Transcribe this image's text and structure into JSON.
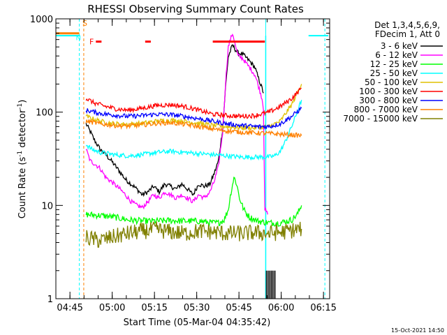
{
  "chart_data": {
    "type": "line",
    "title": "RHESSI Observing Summary Count Rates",
    "xlabel": "Start Time (05-Mar-04 04:35:42)",
    "ylabel_main": "Count Rate (s",
    "ylabel_sup": "-1",
    "ylabel_rest": " detector",
    "ylabel_close": ")",
    "yscale": "log",
    "ylim": [
      1,
      1000
    ],
    "xlim_minutes": [
      4.3,
      101.5
    ],
    "x_ticks": [
      {
        "label": "04:45",
        "min": 9.3
      },
      {
        "label": "05:00",
        "min": 24.3
      },
      {
        "label": "05:15",
        "min": 39.3
      },
      {
        "label": "05:30",
        "min": 54.3
      },
      {
        "label": "05:45",
        "min": 69.3
      },
      {
        "label": "06:00",
        "min": 84.3
      },
      {
        "label": "06:15",
        "min": 99.3
      }
    ],
    "y_ticks": [
      {
        "label": "1",
        "value": 1
      },
      {
        "label": "10",
        "value": 10
      },
      {
        "label": "100",
        "value": 100
      },
      {
        "label": "1000",
        "value": 1000
      }
    ],
    "legend_header": [
      "Det 1,3,4,5,6,9,",
      "FDecim 1, Att 0"
    ],
    "series": [
      {
        "name": "3 - 6 keV",
        "color": "#000000",
        "x": [
          15.0,
          16.5,
          18.0,
          20.0,
          22.0,
          24.0,
          27.0,
          29.0,
          31.0,
          33.0,
          35.0,
          37.0,
          39.0,
          41.0,
          43.0,
          45.0,
          47.0,
          49.0,
          51.0,
          53.0,
          55.0,
          57.0,
          59.0,
          60.5,
          62.0,
          63.5,
          64.5,
          65.5,
          67.0,
          68.0,
          69.0,
          70.5,
          72.0,
          73.5,
          75.0,
          76.0,
          77.5,
          78.0
        ],
        "y": [
          75,
          62,
          50,
          40,
          35,
          30,
          23,
          19,
          17,
          15,
          13,
          14,
          16,
          14,
          17,
          16,
          15,
          17,
          15,
          13,
          17,
          16,
          17,
          22,
          30,
          65,
          180,
          390,
          520,
          470,
          430,
          420,
          380,
          340,
          300,
          240,
          180,
          160
        ]
      },
      {
        "name": "6 - 12 keV",
        "color": "#ff00ff",
        "x": [
          15.0,
          16.5,
          18.0,
          20.0,
          22.0,
          24.0,
          27.0,
          29.0,
          31.0,
          33.0,
          35.0,
          37.0,
          39.0,
          41.0,
          43.0,
          45.0,
          47.0,
          49.0,
          51.0,
          53.0,
          55.0,
          57.0,
          59.0,
          60.5,
          62.0,
          63.5,
          64.5,
          65.5,
          67.0,
          67.5,
          68.0,
          69.0,
          70.5,
          72.0,
          73.5,
          75.0,
          76.0,
          77.5,
          78.0,
          78.5,
          79.5
        ],
        "y": [
          40,
          30,
          28,
          25,
          20,
          18,
          15,
          13,
          11,
          10,
          9.5,
          11,
          13,
          12,
          14,
          13,
          12,
          13,
          12,
          11,
          13,
          12,
          14,
          18,
          26,
          60,
          200,
          500,
          700,
          620,
          520,
          400,
          380,
          330,
          290,
          250,
          200,
          140,
          110,
          9,
          8
        ]
      },
      {
        "name": "12 - 25 keV",
        "color": "#00ff00",
        "x": [
          15.0,
          20.0,
          25.0,
          30.0,
          35.0,
          40.0,
          45.0,
          50.0,
          55.0,
          60.0,
          62.0,
          64.0,
          65.5,
          66.5,
          67.5,
          68.5,
          69.5,
          71.0,
          73.0,
          76.0,
          80.0,
          84.0,
          88.0,
          90.0,
          91.5
        ],
        "y": [
          8,
          7.8,
          7.5,
          7.0,
          6.8,
          6.8,
          6.9,
          6.8,
          6.8,
          6.5,
          6.5,
          7,
          9,
          14,
          20,
          17,
          12,
          9,
          7.5,
          6.8,
          6.5,
          6.5,
          7,
          8,
          10
        ]
      },
      {
        "name": "25 - 50 keV",
        "color": "#00ffff",
        "x": [
          15.0,
          17.0,
          20.0,
          25.0,
          30.0,
          35.0,
          40.0,
          45.0,
          50.0,
          55.0,
          60.0,
          65.0,
          70.0,
          75.0,
          80.0,
          82.0,
          84.0,
          86.0,
          88.0,
          90.0,
          91.5
        ],
        "y": [
          45,
          40,
          37,
          35,
          34,
          35,
          37,
          38,
          37,
          36,
          35,
          34,
          33,
          33,
          33,
          34,
          38,
          50,
          70,
          100,
          135
        ]
      },
      {
        "name": "50 - 100 keV",
        "color": "#e0c000",
        "x": [
          15.0,
          20.0,
          25.0,
          30.0,
          35.0,
          40.0,
          45.0,
          50.0,
          55.0,
          60.0,
          65.0,
          70.0,
          75.0,
          80.0,
          84.0,
          88.0,
          91.5
        ],
        "y": [
          90,
          80,
          75,
          74,
          76,
          80,
          82,
          80,
          76,
          72,
          70,
          68,
          68,
          70,
          80,
          120,
          200
        ]
      },
      {
        "name": "100 - 300 keV",
        "color": "#ff0000",
        "x": [
          15.0,
          18.0,
          22.0,
          26.0,
          30.0,
          35.0,
          40.0,
          45.0,
          50.0,
          55.0,
          60.0,
          65.0,
          70.0,
          75.0,
          80.0,
          84.0,
          88.0,
          91.5
        ],
        "y": [
          140,
          125,
          115,
          108,
          105,
          110,
          118,
          120,
          115,
          105,
          95,
          92,
          90,
          92,
          100,
          115,
          140,
          180
        ]
      },
      {
        "name": "300 - 800 keV",
        "color": "#0000ff",
        "x": [
          15.0,
          20.0,
          25.0,
          30.0,
          35.0,
          40.0,
          45.0,
          50.0,
          55.0,
          60.0,
          65.0,
          70.0,
          75.0,
          80.0,
          84.0,
          88.0,
          91.5
        ],
        "y": [
          105,
          97,
          93,
          90,
          92,
          95,
          94,
          90,
          85,
          80,
          75,
          72,
          70,
          70,
          75,
          90,
          110
        ]
      },
      {
        "name": "800 - 7000 keV",
        "color": "#ff8000",
        "x": [
          15.0,
          20.0,
          25.0,
          30.0,
          35.0,
          40.0,
          45.0,
          50.0,
          55.0,
          60.0,
          65.0,
          70.0,
          75.0,
          80.0,
          84.0,
          88.0,
          91.5
        ],
        "y": [
          80,
          75,
          72,
          71,
          73,
          76,
          77,
          74,
          70,
          66,
          63,
          61,
          60,
          59,
          58,
          57,
          56
        ]
      },
      {
        "name": "7000 - 15000 keV",
        "color": "#808000",
        "x": [
          15.0,
          20.0,
          25.0,
          30.0,
          35.0,
          40.0,
          45.0,
          50.0,
          55.0,
          60.0,
          65.0,
          70.0,
          75.0,
          80.0,
          85.0,
          88.0,
          91.5
        ],
        "y": [
          4.5,
          4.2,
          4.6,
          5.0,
          5.3,
          5.5,
          5.2,
          5.0,
          5.3,
          5.2,
          5.0,
          5.0,
          5.1,
          5.0,
          5.2,
          5.4,
          5.6
        ]
      }
    ],
    "attenuator_bar_min": [
      4.3,
      12.6
    ],
    "attenuator_level": 700,
    "saa_marker": {
      "label": "S",
      "min_range": [
        4.3,
        12.6
      ],
      "value": 800
    },
    "n_marker": {
      "label": "N",
      "min": 12.8,
      "value": 680
    },
    "flare_markers": {
      "label": "F",
      "value": 570,
      "label_min": 17.0,
      "segments_min": [
        [
          18.5,
          20.5
        ],
        [
          36.0,
          38.0
        ],
        [
          60.0,
          78.5
        ]
      ]
    },
    "cyan_level_segments_min": [
      [
        4.3,
        12.6
      ],
      [
        94.0,
        101.0
      ]
    ],
    "cyan_level_value": 660,
    "vertical_markers": [
      {
        "min": 12.6,
        "color": "#00ffff"
      },
      {
        "min": 14.2,
        "color": "#ff8000"
      },
      {
        "min": 78.8,
        "color": "#00ffff",
        "solid": true
      },
      {
        "min": 99.8,
        "color": "#00ffff"
      }
    ],
    "timestamp": "15-Oct-2021 14:50"
  }
}
